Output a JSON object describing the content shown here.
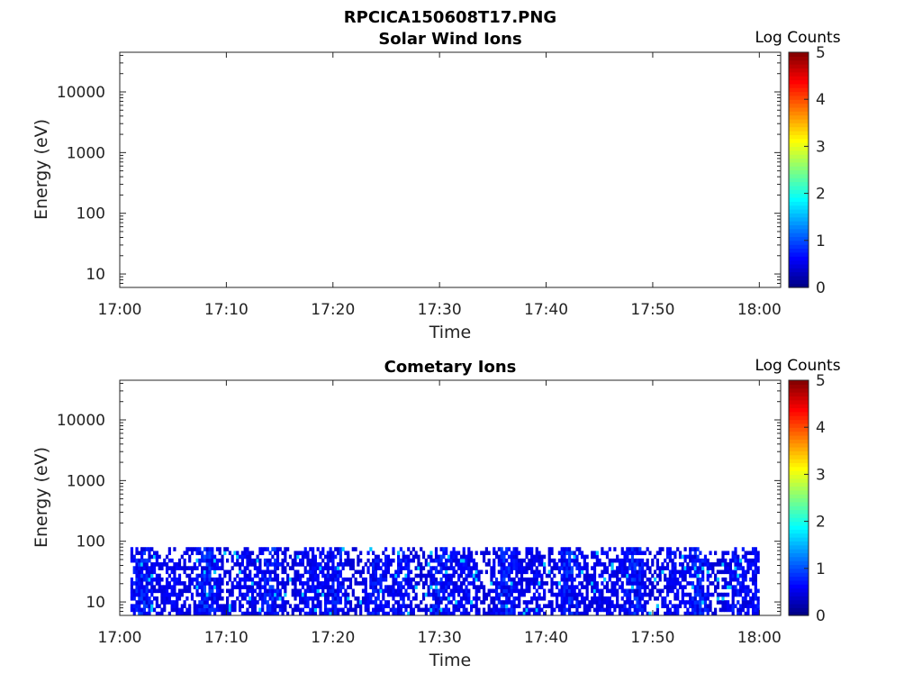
{
  "figure_title": "RPCICA150608T17.PNG",
  "chart_data": [
    {
      "type": "heatmap",
      "title": "Solar Wind Ions",
      "xlabel": "Time",
      "ylabel": "Energy (eV)",
      "x_range": [
        "17:00",
        "18:02"
      ],
      "x_ticks": [
        "17:00",
        "17:10",
        "17:20",
        "17:30",
        "17:40",
        "17:50",
        "18:00"
      ],
      "y_scale": "log",
      "y_range": [
        6,
        45000
      ],
      "y_ticks": [
        "10",
        "100",
        "1000",
        "10000"
      ],
      "colorbar": {
        "label": "Log Counts",
        "range": [
          0,
          5
        ],
        "ticks": [
          "0",
          "1",
          "2",
          "3",
          "4",
          "5"
        ],
        "colormap": "jet"
      },
      "data": {
        "time_range": null,
        "energy_range": null,
        "typical_log_counts": null,
        "note": ""
      }
    },
    {
      "type": "heatmap",
      "title": "Cometary Ions",
      "xlabel": "Time",
      "ylabel": "Energy (eV)",
      "x_range": [
        "17:00",
        "18:02"
      ],
      "x_ticks": [
        "17:00",
        "17:10",
        "17:20",
        "17:30",
        "17:40",
        "17:50",
        "18:00"
      ],
      "y_scale": "log",
      "y_range": [
        6,
        45000
      ],
      "y_ticks": [
        "10",
        "100",
        "1000",
        "10000"
      ],
      "colorbar": {
        "label": "Log Counts",
        "range": [
          0,
          5
        ],
        "ticks": [
          "0",
          "1",
          "2",
          "3",
          "4",
          "5"
        ],
        "colormap": "jet"
      },
      "data": {
        "time_range": [
          "17:01",
          "18:00"
        ],
        "energy_range": [
          6,
          80
        ],
        "typical_log_counts": [
          0.2,
          1.6
        ],
        "note": ""
      }
    }
  ]
}
